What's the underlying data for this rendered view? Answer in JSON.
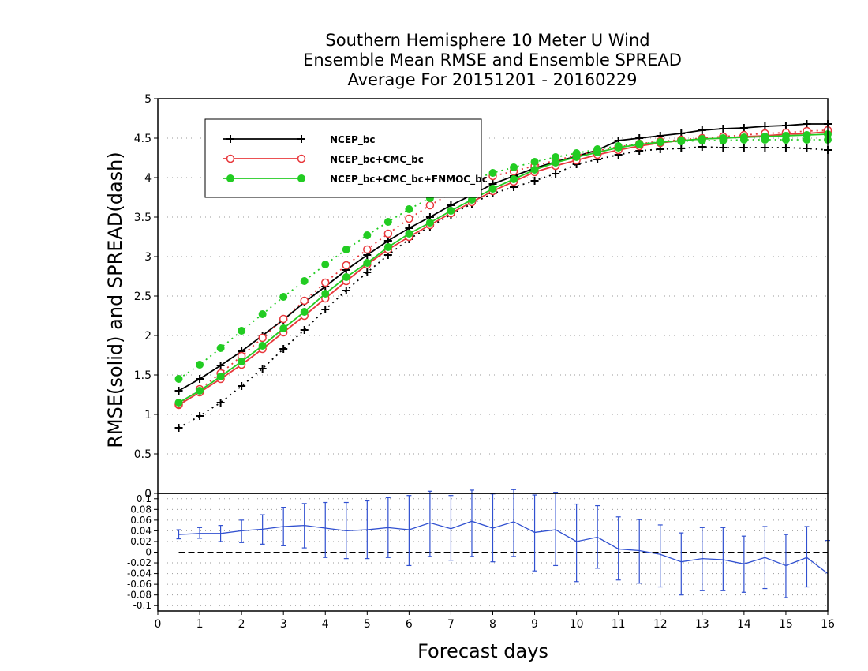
{
  "chart_data": {
    "type": "line",
    "title_lines": [
      "Southern Hemisphere 10 Meter U Wind",
      "Ensemble Mean RMSE and Ensemble SPREAD",
      "Average For 20151201 - 20160229"
    ],
    "xlabel": "Forecast days",
    "ylabel": "RMSE(solid) and SPREAD(dash)",
    "xlim": [
      0,
      16
    ],
    "x_ticks": [
      "0",
      "1",
      "2",
      "3",
      "4",
      "5",
      "6",
      "7",
      "8",
      "9",
      "10",
      "11",
      "12",
      "13",
      "14",
      "15",
      "16"
    ],
    "upper_panel": {
      "ylim": [
        0,
        5
      ],
      "y_ticks": [
        "0",
        "0.5",
        "1",
        "1.5",
        "2",
        "2.5",
        "3",
        "3.5",
        "4",
        "4.5",
        "5"
      ],
      "grid": "dotted horizontal",
      "legend_position": "top-left",
      "x": [
        0.5,
        1,
        1.5,
        2,
        2.5,
        3,
        3.5,
        4,
        4.5,
        5,
        5.5,
        6,
        6.5,
        7,
        7.5,
        8,
        8.5,
        9,
        9.5,
        10,
        10.5,
        11,
        11.5,
        12,
        12.5,
        13,
        13.5,
        14,
        14.5,
        15,
        15.5,
        16
      ],
      "series": [
        {
          "name": "NCEP_bc",
          "color": "#000000",
          "marker": "plus",
          "rmse": [
            1.3,
            1.45,
            1.62,
            1.8,
            2.0,
            2.2,
            2.42,
            2.62,
            2.83,
            3.02,
            3.2,
            3.36,
            3.5,
            3.65,
            3.78,
            3.92,
            4.02,
            4.12,
            4.2,
            4.27,
            4.35,
            4.47,
            4.5,
            4.53,
            4.56,
            4.6,
            4.62,
            4.63,
            4.65,
            4.66,
            4.68,
            4.68
          ],
          "spread": [
            0.83,
            0.98,
            1.15,
            1.36,
            1.58,
            1.83,
            2.07,
            2.33,
            2.57,
            2.8,
            3.02,
            3.22,
            3.38,
            3.53,
            3.67,
            3.8,
            3.88,
            3.96,
            4.05,
            4.17,
            4.23,
            4.29,
            4.34,
            4.36,
            4.37,
            4.39,
            4.38,
            4.38,
            4.38,
            4.38,
            4.37,
            4.35
          ]
        },
        {
          "name": "NCEP_bc+CMC_bc",
          "color": "#e8383c",
          "marker": "open-circle",
          "rmse": [
            1.12,
            1.28,
            1.45,
            1.63,
            1.83,
            2.04,
            2.25,
            2.47,
            2.69,
            2.9,
            3.09,
            3.25,
            3.4,
            3.55,
            3.69,
            3.83,
            3.95,
            4.07,
            4.15,
            4.22,
            4.29,
            4.35,
            4.4,
            4.44,
            4.47,
            4.49,
            4.5,
            4.52,
            4.53,
            4.55,
            4.56,
            4.58
          ],
          "spread": [
            1.13,
            1.32,
            1.52,
            1.74,
            1.97,
            2.21,
            2.44,
            2.67,
            2.89,
            3.09,
            3.29,
            3.48,
            3.65,
            3.8,
            3.93,
            4.02,
            4.08,
            4.15,
            4.22,
            4.28,
            4.34,
            4.39,
            4.43,
            4.46,
            4.48,
            4.5,
            4.52,
            4.54,
            4.56,
            4.57,
            4.59,
            4.6
          ]
        },
        {
          "name": "NCEP_bc+CMC_bc+FNMOC_bc",
          "color": "#22cc22",
          "marker": "filled-circle",
          "rmse": [
            1.15,
            1.3,
            1.48,
            1.67,
            1.87,
            2.09,
            2.3,
            2.53,
            2.74,
            2.92,
            3.12,
            3.29,
            3.43,
            3.58,
            3.72,
            3.86,
            3.98,
            4.1,
            4.19,
            4.26,
            4.32,
            4.38,
            4.42,
            4.45,
            4.47,
            4.49,
            4.5,
            4.51,
            4.52,
            4.53,
            4.54,
            4.55
          ],
          "spread": [
            1.45,
            1.63,
            1.84,
            2.06,
            2.27,
            2.49,
            2.69,
            2.9,
            3.09,
            3.27,
            3.44,
            3.6,
            3.74,
            3.86,
            3.97,
            4.06,
            4.13,
            4.2,
            4.26,
            4.31,
            4.36,
            4.4,
            4.43,
            4.45,
            4.46,
            4.47,
            4.47,
            4.48,
            4.48,
            4.48,
            4.48,
            4.48
          ]
        }
      ]
    },
    "lower_panel": {
      "ylim": [
        -0.11,
        0.11
      ],
      "y_ticks": [
        "-0.1",
        "-0.08",
        "-0.06",
        "-0.04",
        "-0.02",
        "0",
        "0.02",
        "0.04",
        "0.06",
        "0.08",
        "0.1"
      ],
      "grid": "dotted horizontal",
      "color": "#3050d0",
      "x": [
        0.5,
        1,
        1.5,
        2,
        2.5,
        3,
        3.5,
        4,
        4.5,
        5,
        5.5,
        6,
        6.5,
        7,
        7.5,
        8,
        8.5,
        9,
        9.5,
        10,
        10.5,
        11,
        11.5,
        12,
        12.5,
        13,
        13.5,
        14,
        14.5,
        15,
        15.5,
        16
      ],
      "values": [
        0.033,
        0.035,
        0.035,
        0.04,
        0.043,
        0.048,
        0.05,
        0.045,
        0.04,
        0.042,
        0.046,
        0.042,
        0.055,
        0.044,
        0.058,
        0.045,
        0.057,
        0.037,
        0.042,
        0.02,
        0.028,
        0.006,
        0.003,
        -0.004,
        -0.018,
        -0.012,
        -0.014,
        -0.022,
        -0.01,
        -0.025,
        -0.01,
        -0.04
      ],
      "err_low": [
        0.025,
        0.026,
        0.02,
        0.018,
        0.015,
        0.012,
        0.008,
        -0.01,
        -0.012,
        -0.012,
        -0.01,
        -0.025,
        -0.008,
        -0.015,
        -0.008,
        -0.018,
        -0.008,
        -0.035,
        -0.025,
        -0.055,
        -0.03,
        -0.052,
        -0.058,
        -0.065,
        -0.08,
        -0.072,
        -0.072,
        -0.075,
        -0.068,
        -0.085,
        -0.065,
        null
      ],
      "err_high": [
        0.042,
        0.046,
        0.05,
        0.06,
        0.07,
        0.084,
        0.091,
        0.093,
        0.093,
        0.096,
        0.102,
        0.106,
        0.114,
        0.106,
        0.116,
        0.109,
        0.117,
        0.107,
        0.112,
        0.09,
        0.087,
        0.066,
        0.061,
        0.051,
        0.036,
        0.046,
        0.046,
        0.03,
        0.048,
        0.033,
        0.048,
        0.022
      ]
    }
  }
}
